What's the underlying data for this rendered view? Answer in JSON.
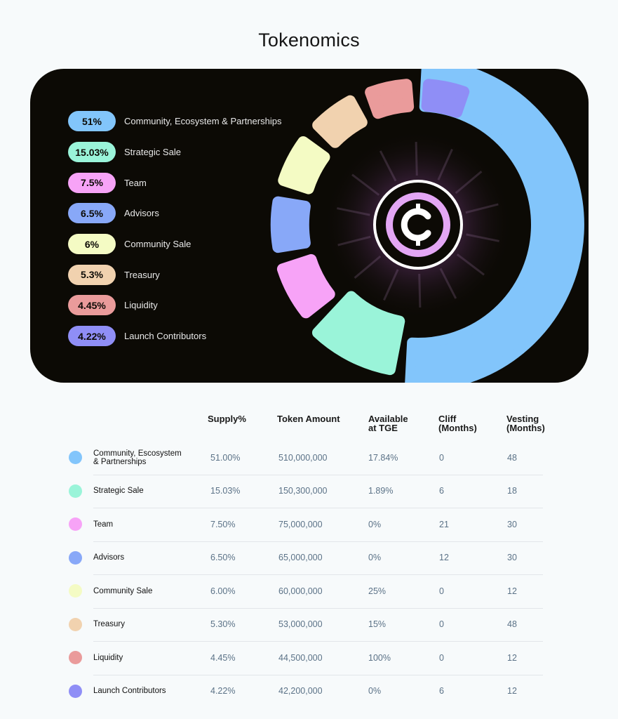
{
  "page": {
    "title": "Tokenomics"
  },
  "chart_data": {
    "type": "pie",
    "title": "Tokenomics",
    "legend_placement": "left",
    "center_icon": "coin-c-logo-icon",
    "slices": [
      {
        "label": "Community, Ecosystem & Partnerships",
        "value": 51,
        "value_label": "51%",
        "color": "#82c5fb"
      },
      {
        "label": "Strategic Sale",
        "value": 15.03,
        "value_label": "15.03%",
        "color": "#9af4d9"
      },
      {
        "label": "Team",
        "value": 7.5,
        "value_label": "7.5%",
        "color": "#f7a3f7"
      },
      {
        "label": "Advisors",
        "value": 6.5,
        "value_label": "6.5%",
        "color": "#88a8f8"
      },
      {
        "label": "Community Sale",
        "value": 6,
        "value_label": "6%",
        "color": "#f4fbc4"
      },
      {
        "label": "Treasury",
        "value": 5.3,
        "value_label": "5.3%",
        "color": "#f1d2af"
      },
      {
        "label": "Liquidity",
        "value": 4.45,
        "value_label": "4.45%",
        "color": "#ea9b9b"
      },
      {
        "label": "Launch Contributors",
        "value": 4.22,
        "value_label": "4.22%",
        "color": "#8f8ef6"
      }
    ]
  },
  "table": {
    "headers": {
      "supply": "Supply%",
      "token_amount": "Token Amount",
      "available_1": "Available",
      "available_2": "at TGE",
      "cliff_1": "Cliff",
      "cliff_2": "(Months)",
      "vesting_1": "Vesting",
      "vesting_2": "(Months)"
    },
    "rows": [
      {
        "name_1": "Community, Escosystem",
        "name_2": "& Partnerships",
        "supply": "51.00%",
        "amount": "510,000,000",
        "tge": "17.84%",
        "cliff": "0",
        "vesting": "48",
        "color": "#82c5fb"
      },
      {
        "name_1": "Strategic Sale",
        "name_2": "",
        "supply": "15.03%",
        "amount": "150,300,000",
        "tge": "1.89%",
        "cliff": "6",
        "vesting": "18",
        "color": "#9af4d9"
      },
      {
        "name_1": "Team",
        "name_2": "",
        "supply": "7.50%",
        "amount": "75,000,000",
        "tge": "0%",
        "cliff": "21",
        "vesting": "30",
        "color": "#f7a3f7"
      },
      {
        "name_1": "Advisors",
        "name_2": "",
        "supply": "6.50%",
        "amount": "65,000,000",
        "tge": "0%",
        "cliff": "12",
        "vesting": "30",
        "color": "#88a8f8"
      },
      {
        "name_1": "Community Sale",
        "name_2": "",
        "supply": "6.00%",
        "amount": "60,000,000",
        "tge": "25%",
        "cliff": "0",
        "vesting": "12",
        "color": "#f4fbc4"
      },
      {
        "name_1": "Treasury",
        "name_2": "",
        "supply": "5.30%",
        "amount": "53,000,000",
        "tge": "15%",
        "cliff": "0",
        "vesting": "48",
        "color": "#f1d2af"
      },
      {
        "name_1": "Liquidity",
        "name_2": "",
        "supply": "4.45%",
        "amount": "44,500,000",
        "tge": "100%",
        "cliff": "0",
        "vesting": "12",
        "color": "#ea9b9b"
      },
      {
        "name_1": "Launch Contributors",
        "name_2": "",
        "supply": "4.22%",
        "amount": "42,200,000",
        "tge": "0%",
        "cliff": "6",
        "vesting": "12",
        "color": "#8f8ef6"
      }
    ]
  }
}
